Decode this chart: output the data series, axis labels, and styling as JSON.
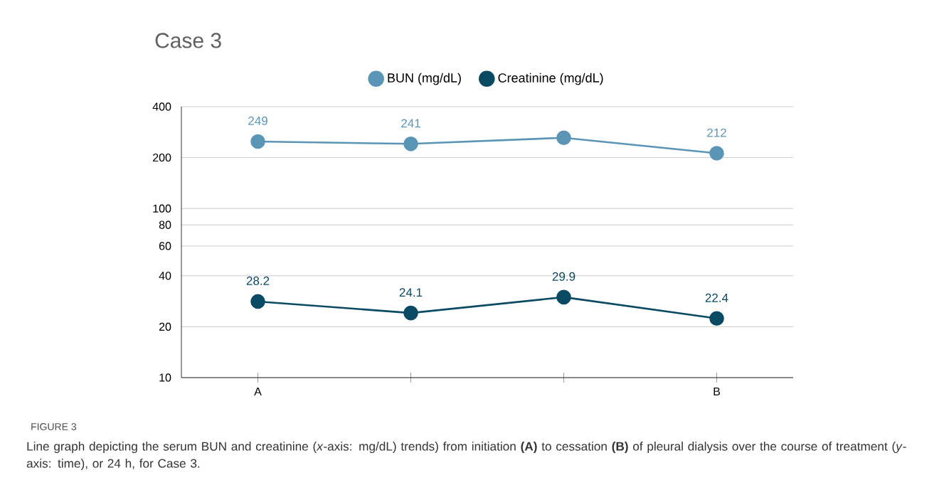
{
  "chart_data": {
    "type": "line",
    "title": "Case 3",
    "categories": [
      "A",
      null,
      null,
      "B"
    ],
    "series": [
      {
        "name": "BUN (mg/dL)",
        "color": "#5b95b5",
        "values": [
          249,
          241,
          262,
          212
        ],
        "value_labels": [
          "249",
          "241",
          null,
          "212"
        ]
      },
      {
        "name": "Creatinine (mg/dL)",
        "color": "#0b4a63",
        "values": [
          28.2,
          24.1,
          29.9,
          22.4
        ],
        "value_labels": [
          "28.2",
          "24.1",
          "29.9",
          "22.4"
        ]
      }
    ],
    "log": "y",
    "ylim": [
      10,
      400
    ],
    "yticks": [
      10,
      20,
      40,
      60,
      80,
      100,
      200,
      400
    ],
    "grid": "y",
    "legend": "top",
    "marker": "circle",
    "line_style": "solid",
    "annotations": [
      "FIGURE 3",
      "Line graph depicting the serum BUN and creatinine (*x*-axis: mg/dL) trends) from initiation **(A)** to cessation **(B)** of pleural dialysis over the course of treatment (*y*-axis: time), or 24 h, for Case 3."
    ]
  }
}
